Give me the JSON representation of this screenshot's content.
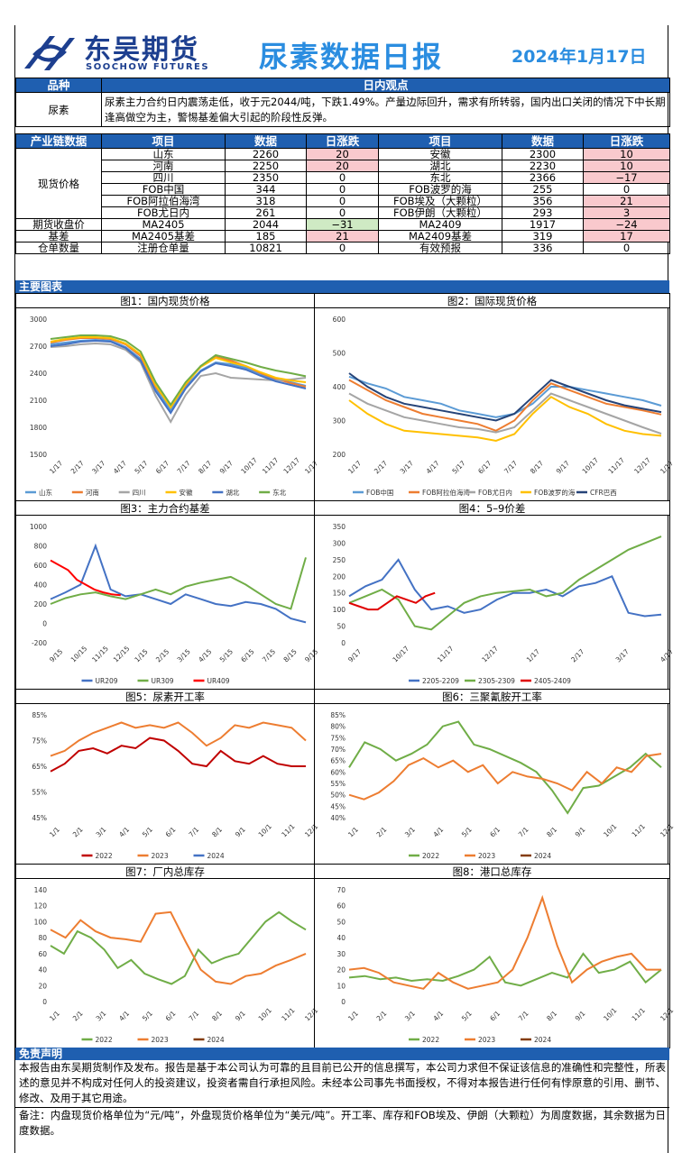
{
  "header": {
    "logo_cn": "东吴期货",
    "logo_en": "SOOCHOW FUTURES",
    "report_title": "尿素数据日报",
    "date": "2024年1月17日"
  },
  "view": {
    "col_variety": "品种",
    "col_view": "日内观点",
    "variety": "尿素",
    "text": "尿素主力合约日内震荡走低，收于元2044/吨，下跌1.49%。产量边际回升，需求有所转弱，国内出口关闭的情况下中长期逢高做空为主，警惕基差偏大引起的阶段性反弹。"
  },
  "data_table": {
    "headers": [
      "产业链数据",
      "项目",
      "数据",
      "日涨跌",
      "项目",
      "数据",
      "日涨跌"
    ],
    "spot_label": "现货价格",
    "spot_rows": [
      {
        "i1": "山东",
        "d1": "2260",
        "c1": "20",
        "i2": "安徽",
        "d2": "2300",
        "c2": "10"
      },
      {
        "i1": "河南",
        "d1": "2250",
        "c1": "20",
        "i2": "湖北",
        "d2": "2230",
        "c2": "10"
      },
      {
        "i1": "四川",
        "d1": "2350",
        "c1": "0",
        "i2": "东北",
        "d2": "2366",
        "c2": "−17"
      },
      {
        "i1": "FOB中国",
        "d1": "344",
        "c1": "0",
        "i2": "FOB波罗的海",
        "d2": "255",
        "c2": "0"
      },
      {
        "i1": "FOB阿拉伯海湾",
        "d1": "318",
        "c1": "0",
        "i2": "FOB埃及（大颗粒）",
        "d2": "356",
        "c2": "21"
      },
      {
        "i1": "FOB尤日内",
        "d1": "261",
        "c1": "0",
        "i2": "FOB伊朗（大颗粒）",
        "d2": "293",
        "c2": "3"
      }
    ],
    "other_rows": [
      {
        "label": "期货收盘价",
        "i1": "MA2405",
        "d1": "2044",
        "c1": "−31",
        "i2": "MA2409",
        "d2": "1917",
        "c2": "−24"
      },
      {
        "label": "基差",
        "i1": "MA2405基差",
        "d1": "185",
        "c1": "21",
        "i2": "MA2409基差",
        "d2": "319",
        "c2": "17"
      },
      {
        "label": "仓单数量",
        "i1": "注册仓单量",
        "d1": "10821",
        "c1": "0",
        "i2": "有效预报",
        "d2": "336",
        "c2": "0"
      }
    ]
  },
  "section_charts": "主要图表",
  "colors": {
    "blue": "#4472c4",
    "orange": "#ed7d31",
    "gray": "#a5a5a5",
    "yellow": "#ffc000",
    "green": "#70ad47",
    "red": "#c00000",
    "navy": "#264478",
    "header_blue": "#1f5fb0"
  },
  "chart_data": [
    {
      "type": "line",
      "title": "图1：国内现货价格",
      "yticks": [
        "3000",
        "2700",
        "2400",
        "2100",
        "1800",
        "1500"
      ],
      "ylim": [
        1500,
        3000
      ],
      "xticks": [
        "1/17",
        "2/17",
        "3/17",
        "4/17",
        "5/17",
        "6/17",
        "7/17",
        "8/17",
        "9/17",
        "10/17",
        "11/17",
        "12/17",
        "1/17"
      ],
      "series": [
        {
          "name": "山东",
          "color": "#5b9bd5",
          "values": [
            2720,
            2740,
            2760,
            2770,
            2760,
            2690,
            2560,
            2230,
            1990,
            2250,
            2430,
            2520,
            2500,
            2460,
            2390,
            2330,
            2300,
            2260
          ]
        },
        {
          "name": "河南",
          "color": "#ed7d31",
          "values": [
            2740,
            2770,
            2790,
            2790,
            2780,
            2720,
            2590,
            2250,
            2040,
            2270,
            2480,
            2580,
            2540,
            2480,
            2400,
            2340,
            2290,
            2250
          ]
        },
        {
          "name": "四川",
          "color": "#a5a5a5",
          "values": [
            2690,
            2700,
            2720,
            2730,
            2720,
            2660,
            2520,
            2150,
            1860,
            2160,
            2370,
            2400,
            2350,
            2340,
            2330,
            2320,
            2330,
            2350
          ]
        },
        {
          "name": "安徽",
          "color": "#ffc000",
          "values": [
            2750,
            2780,
            2800,
            2800,
            2790,
            2730,
            2610,
            2270,
            2020,
            2280,
            2470,
            2570,
            2520,
            2480,
            2410,
            2350,
            2320,
            2300
          ]
        },
        {
          "name": "湖北",
          "color": "#4472c4",
          "values": [
            2700,
            2720,
            2750,
            2760,
            2750,
            2680,
            2540,
            2200,
            1960,
            2230,
            2420,
            2510,
            2480,
            2440,
            2370,
            2310,
            2270,
            2230
          ]
        },
        {
          "name": "东北",
          "color": "#70ad47",
          "values": [
            2780,
            2800,
            2820,
            2820,
            2810,
            2760,
            2640,
            2300,
            2050,
            2300,
            2480,
            2600,
            2560,
            2520,
            2470,
            2430,
            2400,
            2366
          ]
        }
      ]
    },
    {
      "type": "line",
      "title": "图2：国际现货价格",
      "yticks": [
        "600",
        "500",
        "400",
        "300",
        "200"
      ],
      "ylim": [
        200,
        600
      ],
      "xticks": [
        "1/17",
        "2/17",
        "3/17",
        "4/17",
        "5/17",
        "6/17",
        "7/17",
        "8/17",
        "9/17",
        "10/17",
        "11/17",
        "12/17",
        "1/17"
      ],
      "series": [
        {
          "name": "FOB中国",
          "color": "#5b9bd5",
          "values": [
            430,
            410,
            395,
            370,
            360,
            350,
            330,
            320,
            310,
            320,
            350,
            400,
            400,
            390,
            380,
            370,
            360,
            344
          ]
        },
        {
          "name": "FOB阿拉伯海湾",
          "color": "#ed7d31",
          "values": [
            420,
            390,
            360,
            340,
            320,
            310,
            300,
            290,
            270,
            300,
            360,
            410,
            390,
            370,
            350,
            340,
            330,
            318
          ]
        },
        {
          "name": "FOB尤日内",
          "color": "#a5a5a5",
          "values": [
            380,
            350,
            330,
            310,
            300,
            290,
            280,
            275,
            265,
            280,
            330,
            380,
            360,
            340,
            320,
            300,
            280,
            261
          ]
        },
        {
          "name": "FOB波罗的海",
          "color": "#ffc000",
          "values": [
            360,
            320,
            290,
            270,
            265,
            260,
            255,
            250,
            240,
            260,
            320,
            370,
            340,
            320,
            290,
            270,
            260,
            255
          ]
        },
        {
          "name": "CFR巴西",
          "color": "#264478",
          "values": [
            440,
            400,
            370,
            350,
            340,
            330,
            320,
            310,
            300,
            320,
            370,
            420,
            400,
            380,
            360,
            345,
            335,
            325
          ]
        }
      ]
    },
    {
      "type": "line",
      "title": "图3：主力合约基差",
      "yticks": [
        "1000",
        "800",
        "600",
        "400",
        "200",
        "0",
        "-200"
      ],
      "ylim": [
        -200,
        1000
      ],
      "xticks": [
        "9/15",
        "10/15",
        "11/15",
        "12/15",
        "1/15",
        "2/15",
        "3/15",
        "4/15",
        "5/15",
        "6/15",
        "7/15",
        "8/15",
        "9/15"
      ],
      "series": [
        {
          "name": "UR209",
          "color": "#4472c4",
          "values": [
            250,
            320,
            400,
            800,
            350,
            280,
            300,
            250,
            200,
            300,
            250,
            200,
            180,
            220,
            200,
            150,
            50,
            10
          ]
        },
        {
          "name": "UR309",
          "color": "#70ad47",
          "values": [
            200,
            260,
            300,
            320,
            280,
            250,
            300,
            350,
            300,
            380,
            420,
            450,
            480,
            400,
            300,
            200,
            150,
            680
          ]
        },
        {
          "name": "UR409",
          "color": "#ff0000",
          "values": [
            650,
            600,
            550,
            450,
            400,
            350,
            320,
            300,
            290
          ]
        }
      ]
    },
    {
      "type": "line",
      "title": "图4：5–9价差",
      "yticks": [
        "350",
        "300",
        "250",
        "200",
        "150",
        "100",
        "50",
        "0"
      ],
      "ylim": [
        0,
        350
      ],
      "xticks": [
        "9/17",
        "10/17",
        "11/17",
        "12/17",
        "1/17",
        "2/17",
        "3/17",
        "4/17"
      ],
      "series": [
        {
          "name": "2205-2209",
          "color": "#4472c4",
          "values": [
            140,
            170,
            190,
            250,
            160,
            100,
            110,
            90,
            100,
            130,
            150,
            150,
            160,
            140,
            170,
            180,
            200,
            90,
            80,
            85
          ]
        },
        {
          "name": "2305-2309",
          "color": "#70ad47",
          "values": [
            120,
            140,
            160,
            130,
            50,
            40,
            80,
            120,
            140,
            150,
            155,
            160,
            140,
            150,
            190,
            220,
            250,
            280,
            300,
            320
          ]
        },
        {
          "name": "2405-2409",
          "color": "#e00000",
          "values": [
            120,
            110,
            100,
            100,
            120,
            140,
            130,
            120,
            140,
            150
          ]
        }
      ]
    },
    {
      "type": "line",
      "title": "图5：尿素开工率",
      "yticks": [
        "85%",
        "75%",
        "65%",
        "55%",
        "45%"
      ],
      "ylim": [
        45,
        85
      ],
      "xticks": [
        "1/1",
        "2/1",
        "3/1",
        "4/1",
        "5/1",
        "6/1",
        "7/1",
        "8/1",
        "9/1",
        "10/1",
        "11/1",
        "12/1"
      ],
      "series": [
        {
          "name": "2022",
          "color": "#c00000",
          "values": [
            63,
            66,
            71,
            72,
            70,
            73,
            72,
            76,
            75,
            71,
            66,
            65,
            71,
            67,
            66,
            69,
            66,
            65,
            65
          ]
        },
        {
          "name": "2023",
          "color": "#ed7d31",
          "values": [
            69,
            71,
            75,
            78,
            80,
            82,
            80,
            81,
            80,
            82,
            78,
            73,
            76,
            81,
            80,
            82,
            81,
            80,
            75
          ]
        },
        {
          "name": "2024",
          "color": "#4472c4",
          "values": []
        }
      ]
    },
    {
      "type": "line",
      "title": "图6：三聚氰胺开工率",
      "yticks": [
        "85%",
        "80%",
        "75%",
        "70%",
        "65%",
        "60%",
        "55%",
        "50%",
        "45%",
        "40%"
      ],
      "ylim": [
        40,
        85
      ],
      "xticks": [
        "1/1",
        "2/1",
        "3/1",
        "4/1",
        "5/1",
        "6/1",
        "7/1",
        "8/1",
        "9/1",
        "10/1",
        "11/1",
        "12/1"
      ],
      "series": [
        {
          "name": "2022",
          "color": "#70ad47",
          "values": [
            62,
            73,
            70,
            65,
            68,
            72,
            80,
            82,
            72,
            70,
            67,
            64,
            60,
            52,
            42,
            53,
            54,
            58,
            62,
            68,
            62
          ]
        },
        {
          "name": "2023",
          "color": "#ed7d31",
          "values": [
            50,
            48,
            51,
            56,
            63,
            66,
            62,
            65,
            60,
            63,
            55,
            60,
            58,
            57,
            55,
            52,
            60,
            55,
            62,
            60,
            67,
            68
          ]
        },
        {
          "name": "2024",
          "color": "#843c0c",
          "values": []
        }
      ]
    },
    {
      "type": "line",
      "title": "图7：厂内总库存",
      "yticks": [
        "140",
        "120",
        "100",
        "80",
        "60",
        "40",
        "20",
        "0"
      ],
      "ylim": [
        0,
        140
      ],
      "xticks": [
        "1/1",
        "2/1",
        "3/1",
        "4/1",
        "5/1",
        "6/1",
        "7/1",
        "8/1",
        "9/1",
        "10/1",
        "11/1",
        "12/1"
      ],
      "series": [
        {
          "name": "2022",
          "color": "#70ad47",
          "values": [
            70,
            60,
            88,
            80,
            65,
            42,
            52,
            35,
            28,
            22,
            32,
            65,
            48,
            55,
            60,
            80,
            100,
            112,
            100,
            90
          ]
        },
        {
          "name": "2023",
          "color": "#ed7d31",
          "values": [
            90,
            80,
            102,
            88,
            80,
            78,
            75,
            110,
            112,
            75,
            40,
            25,
            22,
            32,
            35,
            45,
            52,
            60
          ]
        },
        {
          "name": "2024",
          "color": "#843c0c",
          "values": []
        }
      ]
    },
    {
      "type": "line",
      "title": "图8：港口总库存",
      "yticks": [
        "70",
        "60",
        "50",
        "40",
        "30",
        "20",
        "10",
        "0"
      ],
      "ylim": [
        0,
        70
      ],
      "xticks": [
        "1/1",
        "2/1",
        "3/1",
        "4/1",
        "5/1",
        "6/1",
        "7/1",
        "8/1",
        "9/1",
        "10/1",
        "11/1",
        "12/1"
      ],
      "series": [
        {
          "name": "2022",
          "color": "#70ad47",
          "values": [
            15,
            16,
            14,
            15,
            13,
            14,
            13,
            16,
            20,
            28,
            12,
            10,
            14,
            18,
            15,
            30,
            18,
            20,
            25,
            12,
            20
          ]
        },
        {
          "name": "2023",
          "color": "#ed7d31",
          "values": [
            20,
            21,
            18,
            12,
            10,
            8,
            18,
            12,
            8,
            10,
            12,
            20,
            40,
            65,
            35,
            12,
            20,
            25,
            28,
            30,
            20,
            20
          ]
        },
        {
          "name": "2024",
          "color": "#843c0c",
          "values": []
        }
      ]
    }
  ],
  "disclaimer": {
    "title": "免责声明",
    "text": "本报告由东吴期货制作及发布。报告是基于本公司认为可靠的且目前已公开的信息撰写，本公司力求但不保证该信息的准确性和完整性，所表述的意见并不构成对任何人的投资建议，投资者需自行承担风险。未经本公司事先书面授权，不得对本报告进行任何有悖原意的引用、删节、修改、及用于其它用途。",
    "note": "备注：内盘现货价格单位为“元/吨”，外盘现货价格单位为“美元/吨”。开工率、库存和FOB埃及、伊朗（大颗粒）为周度数据，其余数据为日度数据。"
  }
}
